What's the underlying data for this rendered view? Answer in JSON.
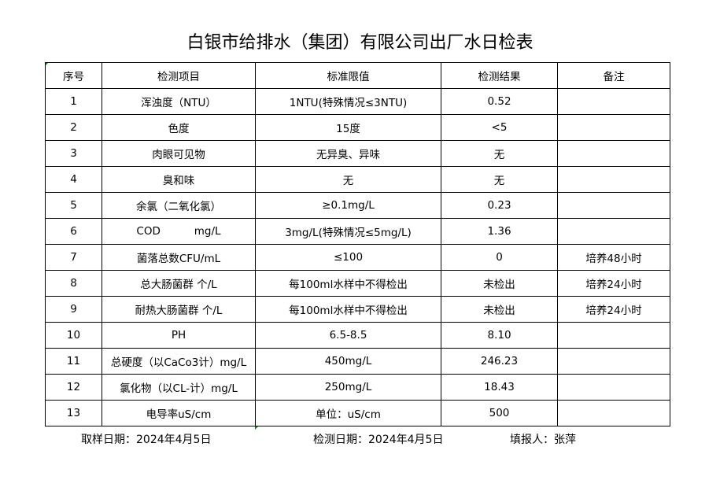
{
  "title": "白银市给排水（集团）有限公司出厂水日检表",
  "headers": [
    "序号",
    "检测项目",
    "标准限值",
    "检测结果",
    "备注"
  ],
  "rows": [
    [
      "1",
      "浑浊度（NTU）",
      "1NTU(特殊情况≤3NTU)",
      "0.52",
      ""
    ],
    [
      "2",
      "色度",
      "15度",
      "<5",
      ""
    ],
    [
      "3",
      "肉眼可见物",
      "无异臭、异味",
      "无",
      ""
    ],
    [
      "4",
      "臭和味",
      "无",
      "无",
      ""
    ],
    [
      "5",
      "余氯（二氧化氯）",
      "≥0.1mg/L",
      "0.23",
      ""
    ],
    [
      "6",
      "COD          mg/L",
      "3mg/L(特殊情况≤5mg/L)",
      "1.36",
      ""
    ],
    [
      "7",
      "菌落总数CFU/mL",
      "≤100",
      "0",
      "培养48小时"
    ],
    [
      "8",
      "总大肠菌群 个/L",
      "每100ml水样中不得检出",
      "未检出",
      "培养24小时"
    ],
    [
      "9",
      "耐热大肠菌群 个/L",
      "每100ml水样中不得检出",
      "未检出",
      "培养24小时"
    ],
    [
      "10",
      "PH",
      "6.5-8.5",
      "8.10",
      ""
    ],
    [
      "11",
      "总硬度（以CaCo3计）mg/L",
      "450mg/L",
      "246.23",
      ""
    ],
    [
      "12",
      "氯化物（以CL-计）mg/L",
      "250mg/L",
      "18.43",
      ""
    ],
    [
      "13",
      "电导率uS/cm",
      "单位：uS/cm",
      "500",
      ""
    ]
  ],
  "footer": {
    "sampling_date": "取样日期：2024年4月5日",
    "test_date": "检测日期：2024年4月5日",
    "reporter": "填报人：张萍"
  }
}
